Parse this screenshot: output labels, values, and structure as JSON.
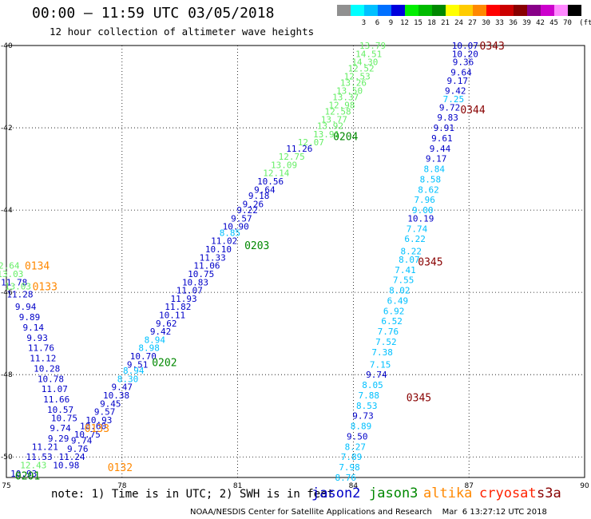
{
  "header": {
    "title": "00:00 – 11:59 UTC 03/05/2018",
    "subtitle": "12 hour collection of altimeter wave heights"
  },
  "scale": {
    "unit": "(ft)",
    "entries": [
      {
        "label": "",
        "color": "#909090"
      },
      {
        "label": "3",
        "color": "#00ffff"
      },
      {
        "label": "6",
        "color": "#00c0ff"
      },
      {
        "label": "9",
        "color": "#0070ff"
      },
      {
        "label": "12",
        "color": "#0000dd"
      },
      {
        "label": "15",
        "color": "#00ee00"
      },
      {
        "label": "18",
        "color": "#00bb00"
      },
      {
        "label": "21",
        "color": "#008800"
      },
      {
        "label": "24",
        "color": "#ffff00"
      },
      {
        "label": "27",
        "color": "#ffcc00"
      },
      {
        "label": "30",
        "color": "#ff8800"
      },
      {
        "label": "33",
        "color": "#ff0000"
      },
      {
        "label": "36",
        "color": "#cc0000"
      },
      {
        "label": "39",
        "color": "#880000"
      },
      {
        "label": "42",
        "color": "#880088"
      },
      {
        "label": "45",
        "color": "#cc00cc"
      },
      {
        "label": "70",
        "color": "#ff88ff"
      },
      {
        "label": "",
        "color": "#000000"
      }
    ]
  },
  "axes": {
    "lon_ticks": [
      "75",
      "78",
      "81",
      "84",
      "87",
      "90"
    ],
    "lat_ticks": [
      "-40",
      "-42",
      "-44",
      "-46",
      "-48",
      "-50"
    ]
  },
  "colors": {
    "dark_blue": "#0000c8",
    "light_blue": "#00c0ff",
    "light_green": "#66ee66",
    "green": "#008800",
    "orange": "#ff8800",
    "dark_red": "#880000",
    "grid": "#000000"
  },
  "measurements": [
    {
      "lon": 84.5,
      "lat": -40.0,
      "v": "13.79",
      "c": "light_green"
    },
    {
      "lon": 84.4,
      "lat": -40.2,
      "v": "14.51",
      "c": "light_green"
    },
    {
      "lon": 84.3,
      "lat": -40.4,
      "v": "14.30",
      "c": "light_green"
    },
    {
      "lon": 84.2,
      "lat": -40.55,
      "v": "12.52",
      "c": "light_green"
    },
    {
      "lon": 84.1,
      "lat": -40.75,
      "v": "12.53",
      "c": "light_green"
    },
    {
      "lon": 84.0,
      "lat": -40.9,
      "v": "13.26",
      "c": "light_green"
    },
    {
      "lon": 83.9,
      "lat": -41.1,
      "v": "13.50",
      "c": "light_green"
    },
    {
      "lon": 83.8,
      "lat": -41.25,
      "v": "13.37",
      "c": "light_green"
    },
    {
      "lon": 83.7,
      "lat": -41.45,
      "v": "12.98",
      "c": "light_green"
    },
    {
      "lon": 83.6,
      "lat": -41.6,
      "v": "12.58",
      "c": "light_green"
    },
    {
      "lon": 83.5,
      "lat": -41.8,
      "v": "13.77",
      "c": "light_green"
    },
    {
      "lon": 83.4,
      "lat": -41.95,
      "v": "13.92",
      "c": "light_green"
    },
    {
      "lon": 83.3,
      "lat": -42.15,
      "v": "13.91",
      "c": "light_green"
    },
    {
      "lon": 82.9,
      "lat": -42.35,
      "v": "12.07",
      "c": "light_green"
    },
    {
      "lon": 82.6,
      "lat": -42.5,
      "v": "11.26",
      "c": "dark_blue"
    },
    {
      "lon": 82.4,
      "lat": -42.7,
      "v": "12.75",
      "c": "light_green"
    },
    {
      "lon": 82.2,
      "lat": -42.9,
      "v": "13.09",
      "c": "light_green"
    },
    {
      "lon": 82.0,
      "lat": -43.1,
      "v": "12.14",
      "c": "light_green"
    },
    {
      "lon": 81.85,
      "lat": -43.3,
      "v": "10.56",
      "c": "dark_blue"
    },
    {
      "lon": 81.7,
      "lat": -43.5,
      "v": "9.64",
      "c": "dark_blue"
    },
    {
      "lon": 81.55,
      "lat": -43.65,
      "v": "9.18",
      "c": "dark_blue"
    },
    {
      "lon": 81.4,
      "lat": -43.85,
      "v": "9.26",
      "c": "dark_blue"
    },
    {
      "lon": 81.25,
      "lat": -44.0,
      "v": "9.22",
      "c": "dark_blue"
    },
    {
      "lon": 81.1,
      "lat": -44.2,
      "v": "9.57",
      "c": "dark_blue"
    },
    {
      "lon": 80.95,
      "lat": -44.4,
      "v": "10.90",
      "c": "dark_blue"
    },
    {
      "lon": 80.8,
      "lat": -44.55,
      "v": "8.85",
      "c": "light_blue"
    },
    {
      "lon": 80.65,
      "lat": -44.75,
      "v": "11.02",
      "c": "dark_blue"
    },
    {
      "lon": 80.5,
      "lat": -44.95,
      "v": "10.10",
      "c": "dark_blue"
    },
    {
      "lon": 80.35,
      "lat": -45.15,
      "v": "11.33",
      "c": "dark_blue"
    },
    {
      "lon": 80.2,
      "lat": -45.35,
      "v": "11.06",
      "c": "dark_blue"
    },
    {
      "lon": 80.05,
      "lat": -45.55,
      "v": "10.75",
      "c": "dark_blue"
    },
    {
      "lon": 79.9,
      "lat": -45.75,
      "v": "10.83",
      "c": "dark_blue"
    },
    {
      "lon": 79.75,
      "lat": -45.95,
      "v": "11.07",
      "c": "dark_blue"
    },
    {
      "lon": 79.6,
      "lat": -46.15,
      "v": "11.93",
      "c": "dark_blue"
    },
    {
      "lon": 79.45,
      "lat": -46.35,
      "v": "11.82",
      "c": "dark_blue"
    },
    {
      "lon": 79.3,
      "lat": -46.55,
      "v": "10.11",
      "c": "dark_blue"
    },
    {
      "lon": 79.15,
      "lat": -46.75,
      "v": "9.62",
      "c": "dark_blue"
    },
    {
      "lon": 79.0,
      "lat": -46.95,
      "v": "9.42",
      "c": "dark_blue"
    },
    {
      "lon": 78.85,
      "lat": -47.15,
      "v": "8.94",
      "c": "light_blue"
    },
    {
      "lon": 78.7,
      "lat": -47.35,
      "v": "8.98",
      "c": "light_blue"
    },
    {
      "lon": 78.55,
      "lat": -47.55,
      "v": "10.70",
      "c": "dark_blue"
    },
    {
      "lon": 78.4,
      "lat": -47.75,
      "v": "9.51",
      "c": "dark_blue"
    },
    {
      "lon": 78.3,
      "lat": -47.9,
      "v": "8.94",
      "c": "light_blue"
    },
    {
      "lon": 78.15,
      "lat": -48.1,
      "v": "8.30",
      "c": "light_blue"
    },
    {
      "lon": 78.0,
      "lat": -48.3,
      "v": "9.47",
      "c": "dark_blue"
    },
    {
      "lon": 77.85,
      "lat": -48.5,
      "v": "10.38",
      "c": "dark_blue"
    },
    {
      "lon": 77.7,
      "lat": -48.7,
      "v": "9.45",
      "c": "dark_blue"
    },
    {
      "lon": 77.55,
      "lat": -48.9,
      "v": "9.57",
      "c": "dark_blue"
    },
    {
      "lon": 77.4,
      "lat": -49.1,
      "v": "10.93",
      "c": "dark_blue"
    },
    {
      "lon": 77.25,
      "lat": -49.25,
      "v": "10.60",
      "c": "dark_blue"
    },
    {
      "lon": 77.1,
      "lat": -49.45,
      "v": "10.75",
      "c": "dark_blue"
    },
    {
      "lon": 76.95,
      "lat": -49.6,
      "v": "9.74",
      "c": "dark_blue"
    },
    {
      "lon": 76.85,
      "lat": -49.8,
      "v": "9.76",
      "c": "dark_blue"
    },
    {
      "lon": 76.7,
      "lat": -50.0,
      "v": "11.24",
      "c": "dark_blue"
    },
    {
      "lon": 76.55,
      "lat": -50.2,
      "v": "10.98",
      "c": "dark_blue"
    },
    {
      "lon": 75.0,
      "lat": -45.35,
      "v": "12.64",
      "c": "light_green"
    },
    {
      "lon": 75.1,
      "lat": -45.55,
      "v": "13.03",
      "c": "light_green"
    },
    {
      "lon": 75.2,
      "lat": -45.75,
      "v": "11.78",
      "c": "dark_blue"
    },
    {
      "lon": 75.3,
      "lat": -45.85,
      "v": "13.03",
      "c": "light_green"
    },
    {
      "lon": 75.35,
      "lat": -46.05,
      "v": "11.28",
      "c": "dark_blue"
    },
    {
      "lon": 75.5,
      "lat": -46.35,
      "v": "9.94",
      "c": "dark_blue"
    },
    {
      "lon": 75.6,
      "lat": -46.6,
      "v": "9.89",
      "c": "dark_blue"
    },
    {
      "lon": 75.7,
      "lat": -46.85,
      "v": "9.14",
      "c": "dark_blue"
    },
    {
      "lon": 75.8,
      "lat": -47.1,
      "v": "9.93",
      "c": "dark_blue"
    },
    {
      "lon": 75.9,
      "lat": -47.35,
      "v": "11.76",
      "c": "dark_blue"
    },
    {
      "lon": 75.95,
      "lat": -47.6,
      "v": "11.12",
      "c": "dark_blue"
    },
    {
      "lon": 76.05,
      "lat": -47.85,
      "v": "10.28",
      "c": "dark_blue"
    },
    {
      "lon": 76.15,
      "lat": -48.1,
      "v": "10.78",
      "c": "dark_blue"
    },
    {
      "lon": 76.25,
      "lat": -48.35,
      "v": "11.07",
      "c": "dark_blue"
    },
    {
      "lon": 76.3,
      "lat": -48.6,
      "v": "11.66",
      "c": "dark_blue"
    },
    {
      "lon": 76.4,
      "lat": -48.85,
      "v": "10.57",
      "c": "dark_blue"
    },
    {
      "lon": 76.5,
      "lat": -49.05,
      "v": "10.75",
      "c": "dark_blue"
    },
    {
      "lon": 76.4,
      "lat": -49.3,
      "v": "9.74",
      "c": "dark_blue"
    },
    {
      "lon": 76.35,
      "lat": -49.55,
      "v": "9.29",
      "c": "dark_blue"
    },
    {
      "lon": 76.0,
      "lat": -49.75,
      "v": "11.21",
      "c": "dark_blue"
    },
    {
      "lon": 75.85,
      "lat": -50.0,
      "v": "11.53",
      "c": "dark_blue"
    },
    {
      "lon": 75.7,
      "lat": -50.2,
      "v": "12.43",
      "c": "light_green"
    },
    {
      "lon": 75.45,
      "lat": -50.4,
      "v": "10.93",
      "c": "dark_blue"
    },
    {
      "lon": 86.9,
      "lat": -40.0,
      "v": "10.07",
      "c": "dark_blue"
    },
    {
      "lon": 86.9,
      "lat": -40.2,
      "v": "10.20",
      "c": "dark_blue"
    },
    {
      "lon": 86.85,
      "lat": -40.4,
      "v": "9.36",
      "c": "dark_blue"
    },
    {
      "lon": 86.8,
      "lat": -40.65,
      "v": "9.64",
      "c": "dark_blue"
    },
    {
      "lon": 86.7,
      "lat": -40.85,
      "v": "9.17",
      "c": "dark_blue"
    },
    {
      "lon": 86.65,
      "lat": -41.1,
      "v": "9.42",
      "c": "dark_blue"
    },
    {
      "lon": 86.6,
      "lat": -41.3,
      "v": "7.25",
      "c": "light_blue"
    },
    {
      "lon": 86.5,
      "lat": -41.5,
      "v": "9.72",
      "c": "dark_blue"
    },
    {
      "lon": 86.45,
      "lat": -41.75,
      "v": "9.83",
      "c": "dark_blue"
    },
    {
      "lon": 86.35,
      "lat": -42.0,
      "v": "9.91",
      "c": "dark_blue"
    },
    {
      "lon": 86.3,
      "lat": -42.25,
      "v": "9.61",
      "c": "dark_blue"
    },
    {
      "lon": 86.25,
      "lat": -42.5,
      "v": "9.44",
      "c": "dark_blue"
    },
    {
      "lon": 86.15,
      "lat": -42.75,
      "v": "9.17",
      "c": "dark_blue"
    },
    {
      "lon": 86.1,
      "lat": -43.0,
      "v": "8.84",
      "c": "light_blue"
    },
    {
      "lon": 86.0,
      "lat": -43.25,
      "v": "8.58",
      "c": "light_blue"
    },
    {
      "lon": 85.95,
      "lat": -43.5,
      "v": "8.62",
      "c": "light_blue"
    },
    {
      "lon": 85.85,
      "lat": -43.75,
      "v": "7.96",
      "c": "light_blue"
    },
    {
      "lon": 85.8,
      "lat": -44.0,
      "v": "9.00",
      "c": "light_blue"
    },
    {
      "lon": 85.75,
      "lat": -44.2,
      "v": "10.19",
      "c": "dark_blue"
    },
    {
      "lon": 85.65,
      "lat": -44.45,
      "v": "7.74",
      "c": "light_blue"
    },
    {
      "lon": 85.6,
      "lat": -44.7,
      "v": "6.22",
      "c": "light_blue"
    },
    {
      "lon": 85.5,
      "lat": -45.0,
      "v": "8.22",
      "c": "light_blue"
    },
    {
      "lon": 85.45,
      "lat": -45.2,
      "v": "8.07",
      "c": "light_blue"
    },
    {
      "lon": 85.35,
      "lat": -45.45,
      "v": "7.41",
      "c": "light_blue"
    },
    {
      "lon": 85.3,
      "lat": -45.7,
      "v": "7.55",
      "c": "light_blue"
    },
    {
      "lon": 85.2,
      "lat": -45.95,
      "v": "8.02",
      "c": "light_blue"
    },
    {
      "lon": 85.15,
      "lat": -46.2,
      "v": "6.49",
      "c": "light_blue"
    },
    {
      "lon": 85.05,
      "lat": -46.45,
      "v": "6.92",
      "c": "light_blue"
    },
    {
      "lon": 85.0,
      "lat": -46.7,
      "v": "6.52",
      "c": "light_blue"
    },
    {
      "lon": 84.9,
      "lat": -46.95,
      "v": "7.76",
      "c": "light_blue"
    },
    {
      "lon": 84.85,
      "lat": -47.2,
      "v": "7.52",
      "c": "light_blue"
    },
    {
      "lon": 84.75,
      "lat": -47.45,
      "v": "7.38",
      "c": "light_blue"
    },
    {
      "lon": 84.7,
      "lat": -47.75,
      "v": "7.15",
      "c": "light_blue"
    },
    {
      "lon": 84.6,
      "lat": -48.0,
      "v": "9.74",
      "c": "dark_blue"
    },
    {
      "lon": 84.5,
      "lat": -48.25,
      "v": "8.05",
      "c": "light_blue"
    },
    {
      "lon": 84.4,
      "lat": -48.5,
      "v": "7.88",
      "c": "light_blue"
    },
    {
      "lon": 84.35,
      "lat": -48.75,
      "v": "8.53",
      "c": "light_blue"
    },
    {
      "lon": 84.25,
      "lat": -49.0,
      "v": "9.73",
      "c": "dark_blue"
    },
    {
      "lon": 84.2,
      "lat": -49.25,
      "v": "8.89",
      "c": "light_blue"
    },
    {
      "lon": 84.1,
      "lat": -49.5,
      "v": "9.50",
      "c": "dark_blue"
    },
    {
      "lon": 84.05,
      "lat": -49.75,
      "v": "8.27",
      "c": "light_blue"
    },
    {
      "lon": 83.95,
      "lat": -50.0,
      "v": "7.89",
      "c": "light_blue"
    },
    {
      "lon": 83.9,
      "lat": -50.25,
      "v": "7.98",
      "c": "light_blue"
    },
    {
      "lon": 83.8,
      "lat": -50.5,
      "v": "8.76",
      "c": "light_blue"
    }
  ],
  "pass_times": [
    {
      "lon": 87.6,
      "lat": -40.0,
      "t": "0343",
      "c": "dark_red"
    },
    {
      "lon": 87.1,
      "lat": -41.55,
      "t": "0344",
      "c": "dark_red"
    },
    {
      "lon": 83.8,
      "lat": -42.2,
      "t": "0204",
      "c": "green"
    },
    {
      "lon": 81.5,
      "lat": -44.85,
      "t": "0203",
      "c": "green"
    },
    {
      "lon": 86.0,
      "lat": -45.25,
      "t": "0345",
      "c": "dark_red"
    },
    {
      "lon": 75.8,
      "lat": -45.35,
      "t": "0134",
      "c": "orange"
    },
    {
      "lon": 76.0,
      "lat": -45.85,
      "t": "0133",
      "c": "orange"
    },
    {
      "lon": 79.1,
      "lat": -47.7,
      "t": "0202",
      "c": "green"
    },
    {
      "lon": 85.7,
      "lat": -48.55,
      "t": "0345",
      "c": "dark_red"
    },
    {
      "lon": 77.35,
      "lat": -49.3,
      "t": "0133",
      "c": "orange"
    },
    {
      "lon": 77.95,
      "lat": -50.25,
      "t": "0132",
      "c": "orange"
    },
    {
      "lon": 75.55,
      "lat": -50.45,
      "t": "0201",
      "c": "green"
    }
  ],
  "footer": {
    "note": "note: 1) Time is in UTC; 2) SWH is in feet",
    "legend": [
      {
        "label": "jason2",
        "c": "dark_blue"
      },
      {
        "label": "jason3",
        "c": "green"
      },
      {
        "label": "altika",
        "c": "orange"
      },
      {
        "label": "cryosat",
        "c": "red_brand"
      },
      {
        "label": "s3a",
        "c": "dark_red"
      }
    ],
    "credit": "NOAA/NESDIS Center for Satellite Applications and Research    Mar  6 13:27:12 UTC 2018"
  }
}
